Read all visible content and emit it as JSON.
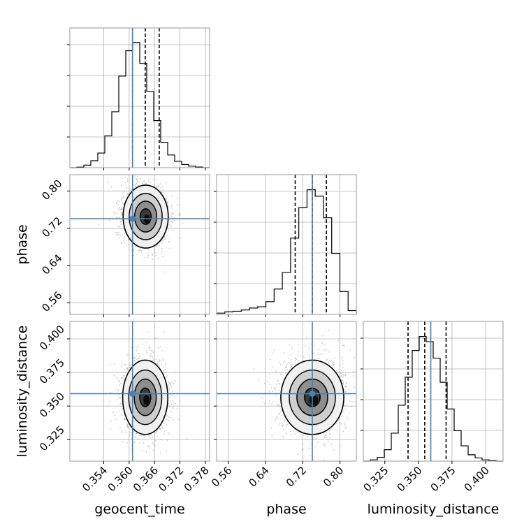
{
  "chart_data": {
    "type": "corner",
    "parameters": [
      {
        "name": "geocent_time",
        "label": "geocent_time",
        "range": [
          0.346,
          0.379
        ],
        "ticks": [
          "0.354",
          "0.360",
          "0.366",
          "0.372",
          "0.378"
        ],
        "injection": 0.3608,
        "quantiles": [
          0.3608,
          0.3638,
          0.3671
        ]
      },
      {
        "name": "phase",
        "label": "phase",
        "range": [
          0.535,
          0.835
        ],
        "ticks": [
          "0.56",
          "0.64",
          "0.72",
          "0.80"
        ],
        "injection": 0.7405,
        "quantiles": [
          0.7037,
          0.7405,
          0.7707
        ]
      },
      {
        "name": "luminosity_distance",
        "label": "luminosity_distance",
        "range": [
          0.309,
          0.413
        ],
        "ticks": [
          "0.325",
          "0.350",
          "0.375",
          "0.400"
        ],
        "injection": 0.3592,
        "quantiles": [
          0.3423,
          0.3547,
          0.3706
        ]
      }
    ],
    "histograms": [
      {
        "parameter": "geocent_time",
        "counts": [
          0,
          0.004,
          0.02,
          0.055,
          0.115,
          0.25,
          0.44,
          0.72,
          0.92,
          0.985,
          0.82,
          0.6,
          0.37,
          0.2,
          0.1,
          0.05,
          0.025,
          0.012,
          0.005,
          0
        ]
      },
      {
        "parameter": "phase",
        "counts": [
          0.01,
          0.02,
          0.025,
          0.035,
          0.05,
          0.06,
          0.1,
          0.2,
          0.33,
          0.6,
          0.84,
          0.98,
          0.93,
          0.76,
          0.48,
          0.18,
          0.03
        ]
      },
      {
        "parameter": "luminosity_distance",
        "counts": [
          0,
          0.01,
          0.03,
          0.09,
          0.22,
          0.44,
          0.66,
          0.87,
          0.98,
          0.94,
          0.81,
          0.62,
          0.41,
          0.24,
          0.12,
          0.05,
          0.025,
          0.01,
          0.004,
          0
        ]
      }
    ],
    "joint_posteriors": [
      {
        "x": "geocent_time",
        "y": "phase",
        "center": [
          0.3639,
          0.745
        ],
        "sigma": [
          0.0026,
          0.033
        ]
      },
      {
        "x": "geocent_time",
        "y": "luminosity_distance",
        "center": [
          0.3638,
          0.3565
        ],
        "sigma": [
          0.0026,
          0.0135
        ]
      },
      {
        "x": "phase",
        "y": "luminosity_distance",
        "center": [
          0.7405,
          0.3565
        ],
        "sigma": [
          0.033,
          0.0135
        ]
      }
    ],
    "grid": true,
    "colors": {
      "injection": "#4682b4",
      "contour": "#000000",
      "samples": "#9e9e9e",
      "histogram": "#000000",
      "grid": "#b0b0b0"
    }
  }
}
